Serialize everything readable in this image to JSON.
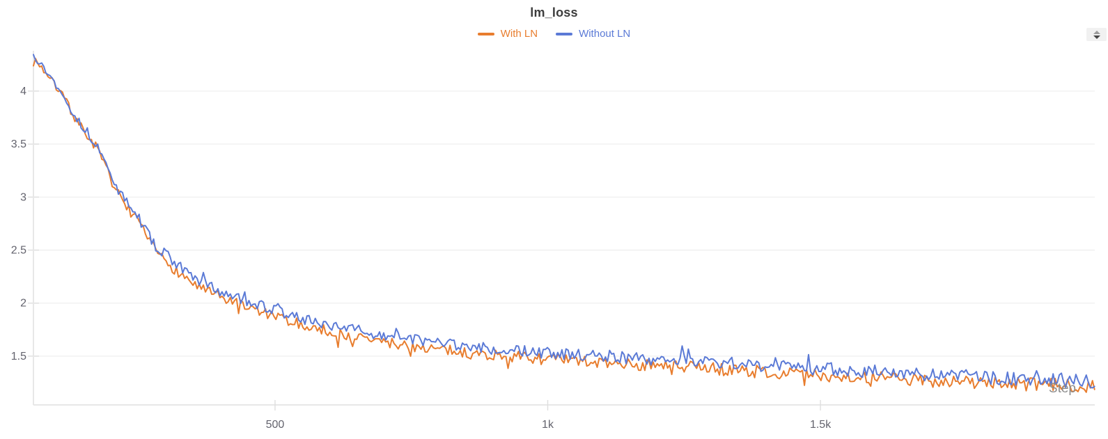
{
  "header": {
    "title": "lm_loss"
  },
  "icons": {
    "triangle_up": "collapse-up-triangle",
    "triangle_down": "expand-down-triangle"
  },
  "colors": {
    "with_ln": "#e87d2e",
    "without_ln": "#5b7ad6",
    "title_text": "#3d3d3d",
    "tick_text": "#63636d",
    "axis_title_text": "#8c8c8c",
    "gridline": "#f0f0f0",
    "axis_line": "#e7e7e7",
    "tick_mark": "#dedede",
    "resize_button_bg": "#f1f1f1"
  },
  "chart_data": {
    "type": "line",
    "title": "lm_loss",
    "xlabel": "Step",
    "ylabel": "",
    "grid": "horizontal-only",
    "legend_position": "top-center",
    "x_range": [
      57,
      2003
    ],
    "y_range": [
      1.04,
      4.38
    ],
    "x_ticks": [
      {
        "value": 500,
        "label": "500"
      },
      {
        "value": 1000,
        "label": "1k"
      },
      {
        "value": 1500,
        "label": "1.5k"
      }
    ],
    "y_ticks": [
      {
        "value": 1.5,
        "label": "1.5"
      },
      {
        "value": 2,
        "label": "2"
      },
      {
        "value": 2.5,
        "label": "2.5"
      },
      {
        "value": 3,
        "label": "3"
      },
      {
        "value": 3.5,
        "label": "3.5"
      },
      {
        "value": 4,
        "label": "4"
      }
    ],
    "sample_step": 3.8,
    "series": [
      {
        "name": "With LN",
        "color": "#e87d2e",
        "seed": 7,
        "spike_direction": -1,
        "spike_probability": 0.07,
        "spike_scale": 1.8,
        "trend_points": [
          [
            57,
            4.32
          ],
          [
            80,
            4.17
          ],
          [
            110,
            3.96
          ],
          [
            140,
            3.69
          ],
          [
            171,
            3.48
          ],
          [
            200,
            3.16
          ],
          [
            215,
            3.0
          ],
          [
            250,
            2.75
          ],
          [
            281,
            2.49
          ],
          [
            320,
            2.3
          ],
          [
            360,
            2.15
          ],
          [
            400,
            2.05
          ],
          [
            445,
            1.97
          ],
          [
            500,
            1.87
          ],
          [
            560,
            1.78
          ],
          [
            620,
            1.71
          ],
          [
            700,
            1.63
          ],
          [
            762,
            1.59
          ],
          [
            850,
            1.53
          ],
          [
            1000,
            1.47
          ],
          [
            1150,
            1.42
          ],
          [
            1274,
            1.39
          ],
          [
            1400,
            1.35
          ],
          [
            1500,
            1.32
          ],
          [
            1650,
            1.28
          ],
          [
            1800,
            1.25
          ],
          [
            1900,
            1.23
          ],
          [
            2003,
            1.22
          ]
        ],
        "noise_amplitude": [
          [
            57,
            0.03
          ],
          [
            150,
            0.045
          ],
          [
            300,
            0.05
          ],
          [
            600,
            0.05
          ],
          [
            1000,
            0.055
          ],
          [
            1400,
            0.06
          ],
          [
            2003,
            0.065
          ]
        ]
      },
      {
        "name": "Without LN",
        "color": "#5b7ad6",
        "seed": 13,
        "spike_direction": 1,
        "spike_probability": 0.07,
        "spike_scale": 1.8,
        "trend_points": [
          [
            57,
            4.34
          ],
          [
            80,
            4.19
          ],
          [
            110,
            3.98
          ],
          [
            140,
            3.71
          ],
          [
            171,
            3.51
          ],
          [
            200,
            3.2
          ],
          [
            215,
            3.04
          ],
          [
            250,
            2.8
          ],
          [
            281,
            2.54
          ],
          [
            320,
            2.36
          ],
          [
            360,
            2.21
          ],
          [
            400,
            2.11
          ],
          [
            445,
            2.03
          ],
          [
            500,
            1.93
          ],
          [
            560,
            1.84
          ],
          [
            620,
            1.77
          ],
          [
            700,
            1.69
          ],
          [
            762,
            1.65
          ],
          [
            850,
            1.59
          ],
          [
            1000,
            1.53
          ],
          [
            1150,
            1.48
          ],
          [
            1274,
            1.45
          ],
          [
            1400,
            1.41
          ],
          [
            1500,
            1.38
          ],
          [
            1650,
            1.34
          ],
          [
            1800,
            1.3
          ],
          [
            1900,
            1.28
          ],
          [
            2003,
            1.26
          ]
        ],
        "noise_amplitude": [
          [
            57,
            0.03
          ],
          [
            150,
            0.045
          ],
          [
            300,
            0.05
          ],
          [
            600,
            0.05
          ],
          [
            1000,
            0.055
          ],
          [
            1400,
            0.06
          ],
          [
            2003,
            0.065
          ]
        ]
      }
    ]
  }
}
